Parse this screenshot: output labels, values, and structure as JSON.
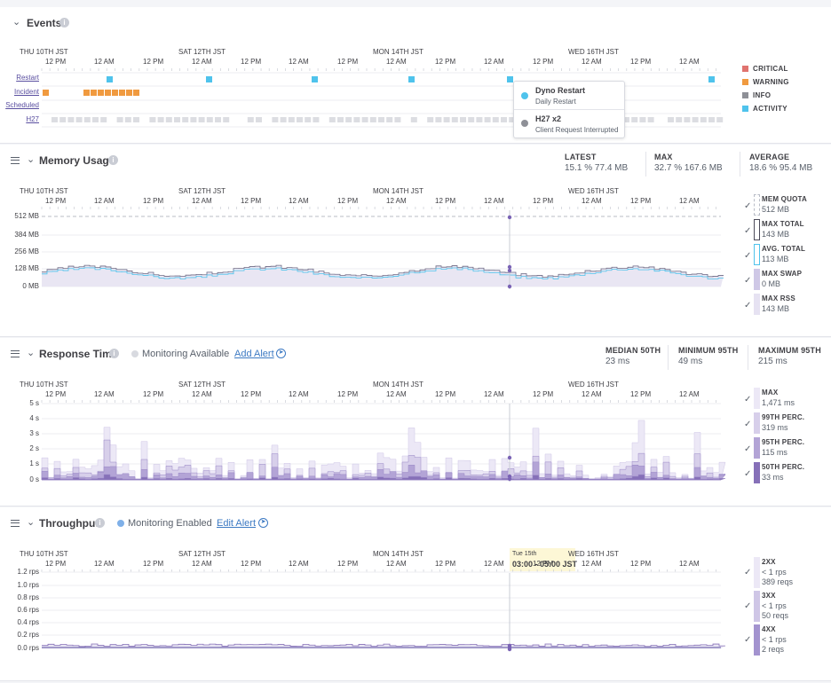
{
  "time_axis": {
    "days": [
      "THU 10TH JST",
      "SAT 12TH JST",
      "MON 14TH JST",
      "WED 16TH JST"
    ],
    "hours": [
      "12 PM",
      "12 AM",
      "12 PM",
      "12 AM",
      "12 PM",
      "12 AM",
      "12 PM",
      "12 AM",
      "12 PM",
      "12 AM",
      "12 PM",
      "12 AM",
      "12 PM",
      "12 AM"
    ]
  },
  "events": {
    "title": "Events",
    "rows": [
      "Restart",
      "Incident",
      "Scheduled",
      "H27"
    ],
    "legend": [
      {
        "label": "CRITICAL",
        "color": "#e0736f"
      },
      {
        "label": "WARNING",
        "color": "#f09a3f"
      },
      {
        "label": "INFO",
        "color": "#8e9097"
      },
      {
        "label": "ACTIVITY",
        "color": "#4fc3ec"
      }
    ],
    "tooltip": [
      {
        "title": "Dyno Restart",
        "subtitle": "Daily Restart",
        "color": "#4fc3ec"
      },
      {
        "title": "H27 x2",
        "subtitle": "Client Request Interrupted",
        "color": "#8e9097"
      }
    ]
  },
  "memory": {
    "title": "Memory Usage",
    "stats": [
      {
        "label": "LATEST",
        "value": "15.1 %   77.4 MB"
      },
      {
        "label": "MAX",
        "value": "32.7 %   167.6 MB"
      },
      {
        "label": "AVERAGE",
        "value": "18.6 %   95.4 MB"
      }
    ],
    "yticks": [
      "512 MB",
      "384 MB",
      "256 MB",
      "128 MB",
      "0 MB"
    ],
    "legend": [
      {
        "label": "MEM QUOTA",
        "value": "512 MB",
        "color": "#b8bcc6",
        "style": "dashed"
      },
      {
        "label": "MAX TOTAL",
        "value": "143 MB",
        "color": "#4c4b5a",
        "style": "outline"
      },
      {
        "label": "AVG. TOTAL",
        "value": "113 MB",
        "color": "#4fc3ec",
        "style": "outline"
      },
      {
        "label": "MAX SWAP",
        "value": "0 MB",
        "color": "#cfc8e6",
        "style": "fill"
      },
      {
        "label": "MAX RSS",
        "value": "143 MB",
        "color": "#e6e2f2",
        "style": "fill"
      }
    ]
  },
  "response": {
    "title": "Response Time",
    "monitoring": "Monitoring Available",
    "monitoring_color": "#d8dae0",
    "alert_link": "Add Alert",
    "stats": [
      {
        "label": "MEDIAN 50TH",
        "value": "23 ms"
      },
      {
        "label": "MINIMUM 95TH",
        "value": "49 ms"
      },
      {
        "label": "MAXIMUM 95TH",
        "value": "215 ms"
      }
    ],
    "yticks": [
      "5 s",
      "4 s",
      "3 s",
      "2 s",
      "1 s",
      "0 s"
    ],
    "legend": [
      {
        "label": "MAX",
        "value": "1,471 ms",
        "color": "#ece8f6"
      },
      {
        "label": "99TH PERC.",
        "value": "319 ms",
        "color": "#d7cfea"
      },
      {
        "label": "95TH PERC.",
        "value": "115 ms",
        "color": "#b3a4d6"
      },
      {
        "label": "50TH PERC.",
        "value": "33 ms",
        "color": "#8670b8"
      }
    ]
  },
  "throughput": {
    "title": "Throughput",
    "monitoring": "Monitoring Enabled",
    "monitoring_color": "#7fb0e8",
    "alert_link": "Edit Alert",
    "yticks": [
      "1.2 rps",
      "1.0 rps",
      "0.8 rps",
      "0.6 rps",
      "0.4 rps",
      "0.2 rps",
      "0.0 rps"
    ],
    "hover_day": "Tue 15th",
    "hover_range": "03:00 - 05:00 JST",
    "legend": [
      {
        "label": "2XX",
        "value1": "< 1 rps",
        "value2": "389 reqs",
        "color": "#ece8f6"
      },
      {
        "label": "3XX",
        "value1": "< 1 rps",
        "value2": "50 reqs",
        "color": "#cfc6e6"
      },
      {
        "label": "4XX",
        "value1": "< 1 rps",
        "value2": "2 reqs",
        "color": "#a393cf"
      }
    ]
  }
}
